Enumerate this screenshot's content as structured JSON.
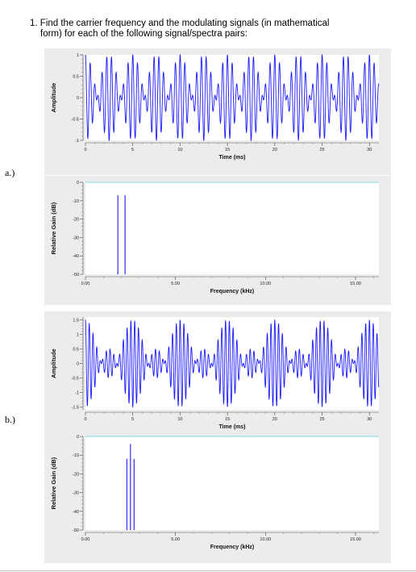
{
  "question": {
    "number": "1.",
    "line1": "Find the carrier frequency and the modulating signals (in mathematical",
    "line2": "form) for each of the following signal/spectra pairs:"
  },
  "parts": [
    {
      "label": "a.)"
    },
    {
      "label": "b.)"
    }
  ],
  "colors": {
    "trace": "#1a1aff",
    "grid_bg": "#ececec",
    "plot_bg": "#ffffff",
    "ref_line": "#7fd8d8"
  },
  "chart_data": [
    {
      "type": "line",
      "ylabel": "Amplitude",
      "xlabel": "Time (ms)",
      "xlim": [
        0,
        31
      ],
      "ylim": [
        -1,
        1
      ],
      "xticks": [
        "0",
        "5",
        "10",
        "15",
        "20",
        "25",
        "30"
      ],
      "yticks": [
        "1",
        "0.5",
        "0",
        "-0.5",
        "-1"
      ],
      "signal": {
        "carrier_khz": 2.0,
        "envelope_hz": 200,
        "envelope_dc": 0.0,
        "envelope_amp": 1.0
      },
      "grid": false
    },
    {
      "type": "bar",
      "ylabel": "Relative Gain (dB)",
      "xlabel": "Frequency (kHz)",
      "xlim": [
        0,
        16.3
      ],
      "ylim": [
        -50,
        0
      ],
      "xticks": [
        "0.00",
        "5.00",
        "10.00",
        "15.00"
      ],
      "yticks": [
        "0",
        "-10",
        "-20",
        "-30",
        "-40",
        "-50"
      ],
      "spectral_lines": [
        {
          "x": 1.8,
          "y": -7
        },
        {
          "x": 2.2,
          "y": -7
        }
      ],
      "grid": false
    },
    {
      "type": "line",
      "ylabel": "Amplitude",
      "xlabel": "Time (ms)",
      "xlim": [
        0,
        31
      ],
      "ylim": [
        -1.6,
        1.6
      ],
      "xticks": [
        "0",
        "5",
        "10",
        "15",
        "20",
        "25",
        "30"
      ],
      "yticks": [
        "1.5",
        "1",
        "0.5",
        "0",
        "-0.5",
        "-1",
        "-1.5"
      ],
      "signal": {
        "carrier_khz": 2.5,
        "envelope_hz": 200,
        "envelope_dc": 0.5,
        "envelope_amp": 1.0
      },
      "grid": false
    },
    {
      "type": "bar",
      "ylabel": "Relative Gain (dB)",
      "xlabel": "Frequency (kHz)",
      "xlim": [
        0,
        16.3
      ],
      "ylim": [
        -50,
        0
      ],
      "xticks": [
        "0.00",
        "5.00",
        "10.00",
        "15.00"
      ],
      "yticks": [
        "0",
        "-10",
        "-20",
        "-30",
        "-40",
        "-50"
      ],
      "spectral_lines": [
        {
          "x": 2.3,
          "y": -12
        },
        {
          "x": 2.5,
          "y": -4
        },
        {
          "x": 2.7,
          "y": -12
        }
      ],
      "grid": false
    }
  ]
}
